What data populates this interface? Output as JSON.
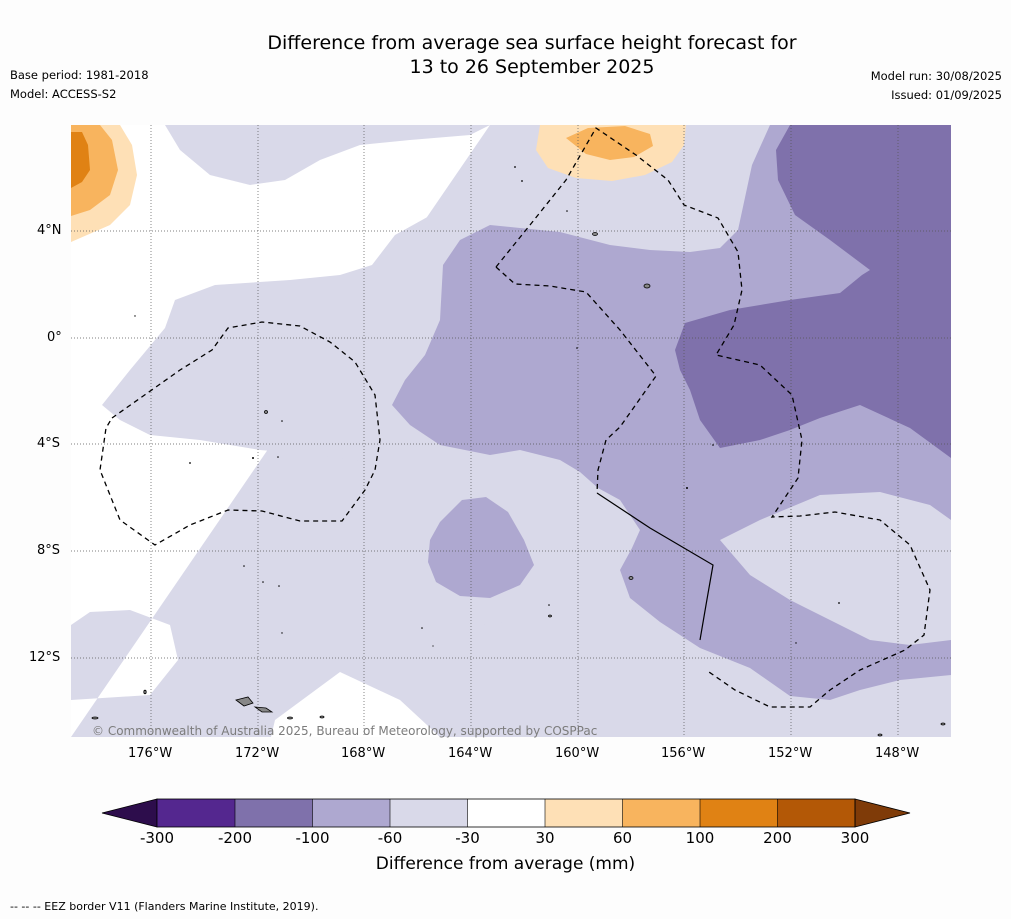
{
  "header": {
    "title_line1": "Difference from average sea surface height forecast for",
    "title_line2": "13 to 26 September 2025",
    "base_period": "Base period: 1981-2018",
    "model": "Model: ACCESS-S2",
    "model_run": "Model run: 30/08/2025",
    "issued": "Issued: 01/09/2025"
  },
  "map": {
    "lat_labels": [
      "4°N",
      "0°",
      "4°S",
      "8°S",
      "12°S"
    ],
    "lon_labels": [
      "176°W",
      "172°W",
      "168°W",
      "164°W",
      "160°W",
      "156°W",
      "152°W",
      "148°W"
    ],
    "copyright": "© Commonwealth of Australia 2025, Bureau of Meteorology, supported by COSPPac",
    "colors": {
      "very_low": "#2d0d4c",
      "lowest": "#54278f",
      "low_strong": "#7f71ab",
      "low": "#aea8d0",
      "slightly_low": "#d9d9e9",
      "neutral": "#ffffff",
      "slightly_high": "#fee0b6",
      "high": "#f8b45e",
      "higher": "#e08214",
      "highest": "#b35806",
      "very_high": "#7f3b08",
      "land": "#888888"
    }
  },
  "colorbar": {
    "tick_labels": [
      "-300",
      "-200",
      "-100",
      "-60",
      "-30",
      "30",
      "60",
      "100",
      "200",
      "300"
    ],
    "title": "Difference from average (mm)",
    "segment_colors": [
      "#54278f",
      "#7f71ab",
      "#aea8d0",
      "#d9d9e9",
      "#ffffff",
      "#fee0b6",
      "#f8b45e",
      "#e08214",
      "#b35806"
    ],
    "under_color": "#2d0d4c",
    "over_color": "#7f3b08"
  },
  "footer": {
    "legend_note": "--  --  -- EEZ border V11 (Flanders Marine Institute, 2019)."
  }
}
